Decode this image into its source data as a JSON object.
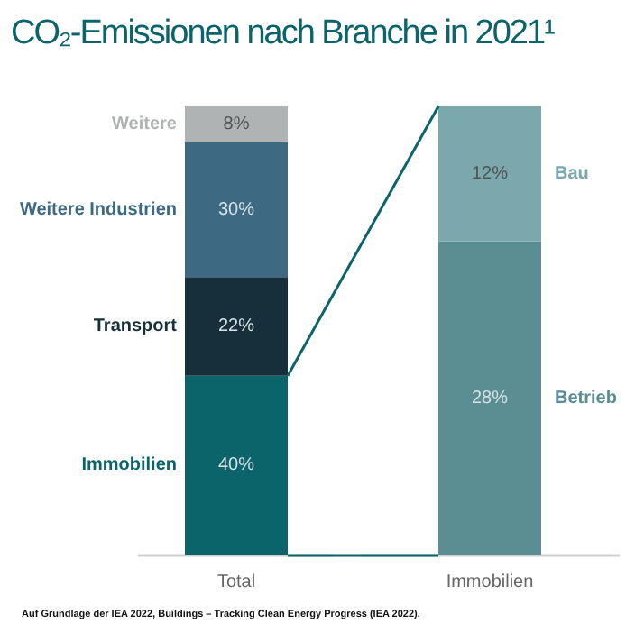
{
  "chart_data": [
    {
      "type": "bar",
      "title": "CO₂-Emissionen nach Branche in 2021¹",
      "stacked": true,
      "categories": [
        "Total"
      ],
      "ylim": [
        0,
        100
      ],
      "tick_labels": "x",
      "grid": false,
      "legend": false,
      "series": [
        {
          "name": "Immobilien",
          "color": "#0b6469",
          "values": [
            40
          ],
          "value_labels": [
            "40%"
          ]
        },
        {
          "name": "Transport",
          "color": "#172e3b",
          "values": [
            22
          ],
          "value_labels": [
            "22%"
          ]
        },
        {
          "name": "Weitere Industrien",
          "color": "#3d6a82",
          "values": [
            30
          ],
          "value_labels": [
            "30%"
          ]
        },
        {
          "name": "Weitere",
          "color": "#b0b3b3",
          "values": [
            8
          ],
          "value_labels": [
            "8%"
          ]
        }
      ],
      "annotations": [
        "Auf Grundlage der IEA 2022, Buildings – Tracking Clean Energy Progress (IEA 2022)."
      ]
    },
    {
      "type": "bar",
      "stacked": true,
      "categories": [
        "Immobilien"
      ],
      "ylim": [
        0,
        40
      ],
      "tick_labels": "x",
      "grid": false,
      "legend": false,
      "series": [
        {
          "name": "Betrieb",
          "color": "#5a8e93",
          "values": [
            28
          ],
          "value_labels": [
            "28%"
          ]
        },
        {
          "name": "Bau",
          "color": "#7aa8ac",
          "values": [
            12
          ],
          "value_labels": [
            "12%"
          ]
        }
      ]
    }
  ]
}
